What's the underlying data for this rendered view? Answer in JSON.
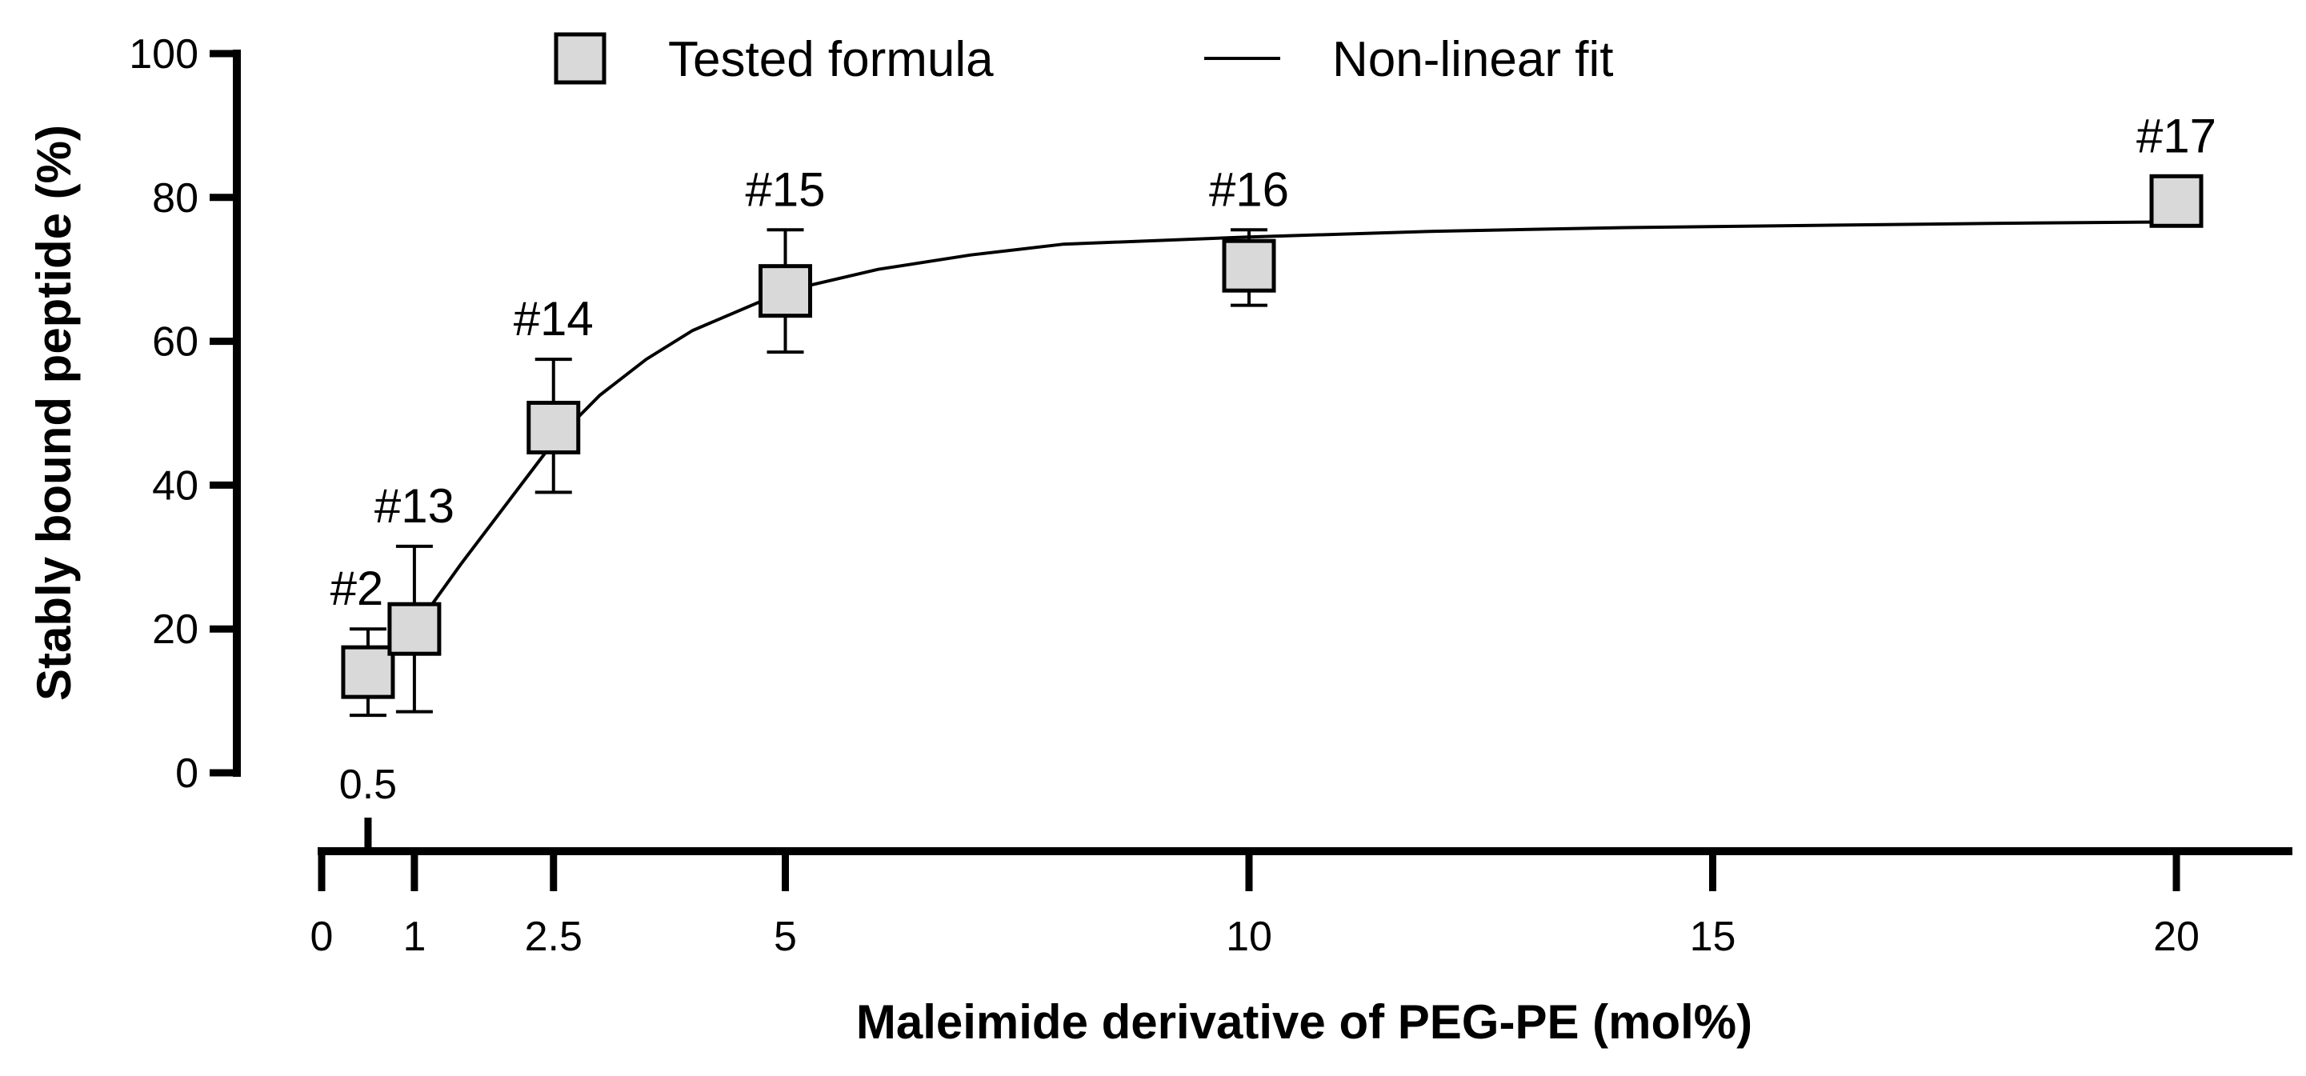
{
  "chart_data": {
    "type": "scatter",
    "title": "",
    "xlabel": "Maleimide derivative of PEG-PE (mol%)",
    "ylabel": "Stably bound peptide (%)",
    "xlim": [
      0,
      21
    ],
    "ylim": [
      0,
      100
    ],
    "x_ticks": [
      0,
      1,
      2.5,
      5,
      10,
      15,
      20
    ],
    "x_tick_labels": [
      "0",
      "1",
      "2.5",
      "5",
      "10",
      "15",
      "20"
    ],
    "x_extra_tick": {
      "value": 0.5,
      "label": "0.5",
      "placement": "above axis"
    },
    "y_ticks": [
      0,
      20,
      40,
      60,
      80,
      100
    ],
    "y_tick_labels": [
      "0",
      "20",
      "40",
      "60",
      "80",
      "100"
    ],
    "grid": false,
    "legend": {
      "placement": "top",
      "entries": [
        {
          "name": "Tested formula",
          "symbol": "gray-square"
        },
        {
          "name": "Non-linear fit",
          "symbol": "line"
        }
      ]
    },
    "series": [
      {
        "name": "Tested formula",
        "kind": "markers-with-error-bars",
        "marker_color": "#d9d9d9",
        "points": [
          {
            "label": "#2",
            "x": 0.5,
            "y": 14,
            "y_low": 8,
            "y_high": 20
          },
          {
            "label": "#13",
            "x": 1,
            "y": 20,
            "y_low": 8.5,
            "y_high": 31.5
          },
          {
            "label": "#14",
            "x": 2.5,
            "y": 48,
            "y_low": 39,
            "y_high": 57.5
          },
          {
            "label": "#15",
            "x": 5,
            "y": 67,
            "y_low": 58.5,
            "y_high": 75.5
          },
          {
            "label": "#16",
            "x": 10,
            "y": 70.5,
            "y_low": 65,
            "y_high": 75.5
          },
          {
            "label": "#17",
            "x": 20,
            "y": 79.5,
            "y_low": 79.5,
            "y_high": 79.5
          }
        ]
      },
      {
        "name": "Non-linear fit",
        "kind": "line",
        "x": [
          1,
          1.5,
          2,
          2.5,
          3,
          3.5,
          4,
          5,
          6,
          7,
          8,
          10,
          12,
          14,
          16,
          18,
          20
        ],
        "values": [
          20,
          29,
          37.5,
          46,
          52.5,
          57.5,
          61.5,
          67,
          70,
          72,
          73.5,
          74.5,
          75.3,
          75.8,
          76.1,
          76.4,
          76.6
        ]
      }
    ]
  }
}
